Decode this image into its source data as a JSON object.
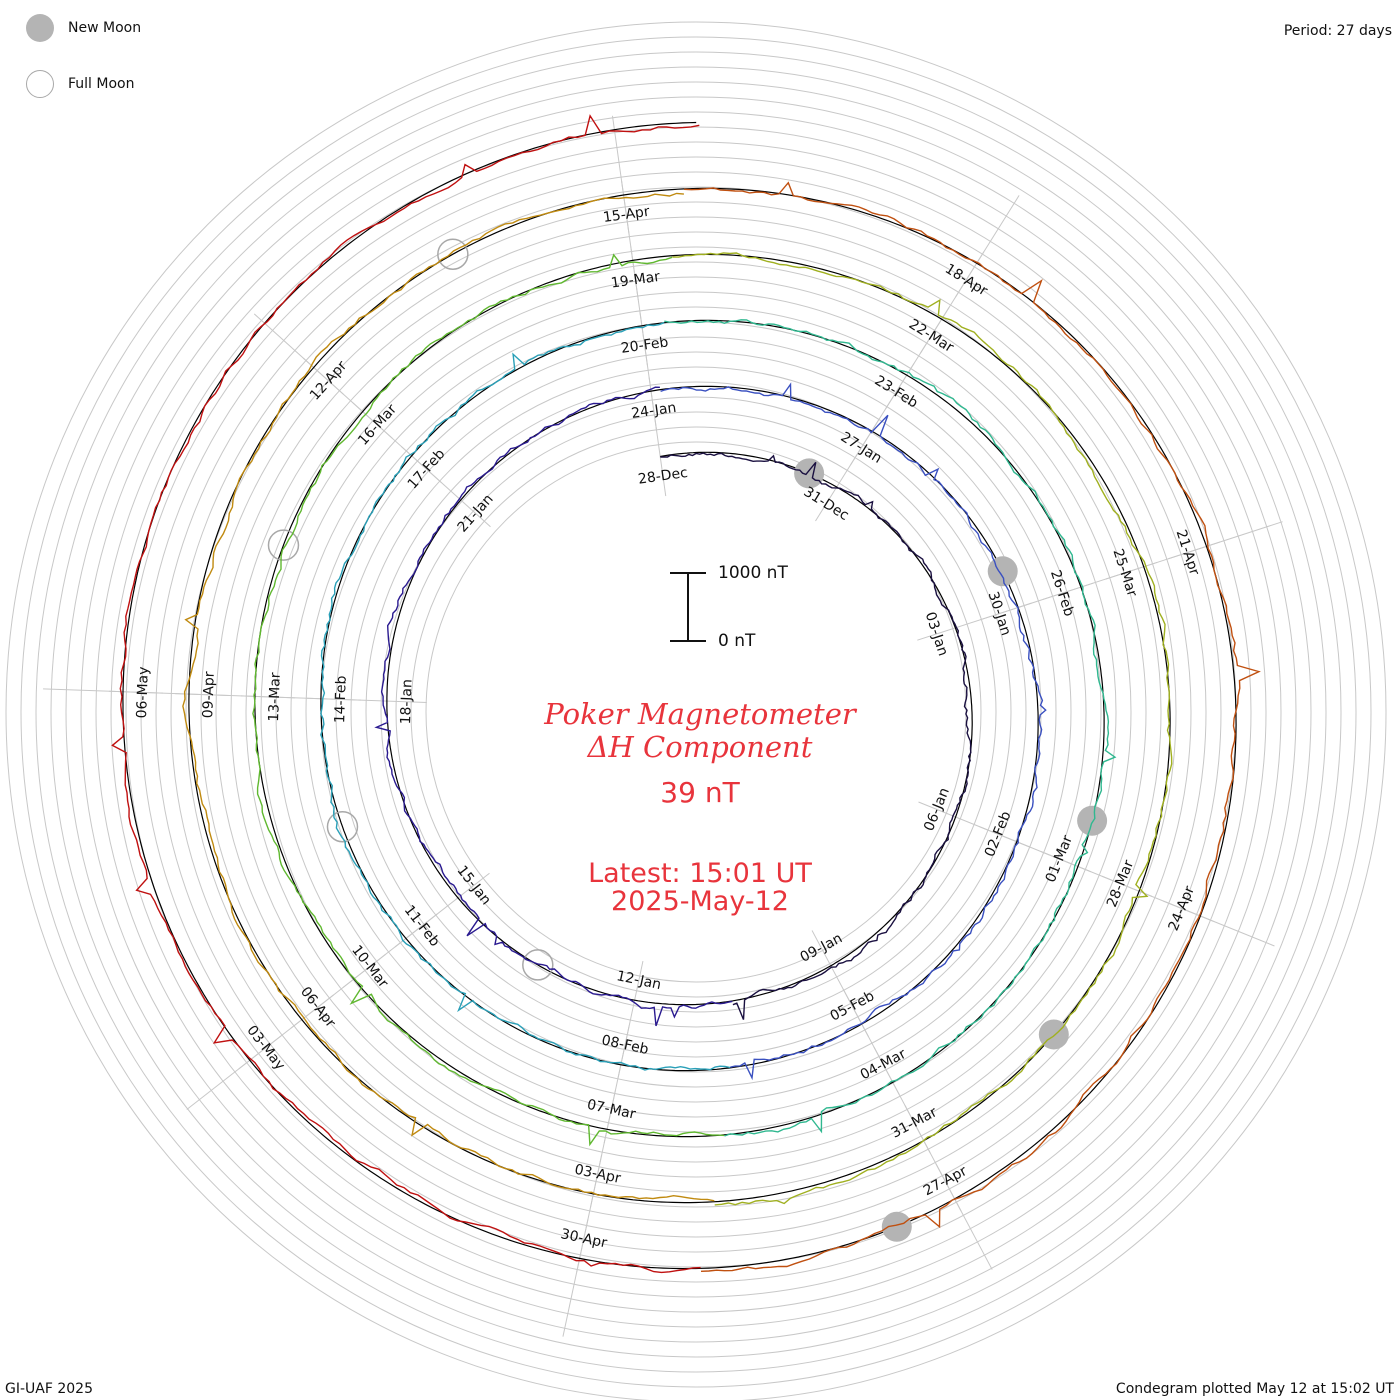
{
  "legend": {
    "new_moon": "New Moon",
    "full_moon": "Full Moon"
  },
  "period_label": "Period: 27 days",
  "footer_left": "GI-UAF 2025",
  "footer_right": "Condegram plotted May 12 at 15:02 UT",
  "title_line1": "Poker Magnetometer",
  "title_line2": "ΔH Component",
  "current_value": "39 nT",
  "latest_line1": "Latest: 15:01 UT",
  "latest_line2": "2025-May-12",
  "scale": {
    "top_label": "1000 nT",
    "bottom_label": "0 nT"
  },
  "colors": {
    "title_red": "#e8343c",
    "grid": "#c8c8c8",
    "moon_gray": "#b4b4b4"
  },
  "chart_data": {
    "type": "line",
    "period_days": 27,
    "scale_nT": [
      0,
      1000
    ],
    "start_date": "2024-12-28",
    "end_date": "2025-05-12",
    "date_labels": [
      "28-Dec",
      "31-Dec",
      "03-Jan",
      "06-Jan",
      "09-Jan",
      "12-Jan",
      "15-Jan",
      "18-Jan",
      "21-Jan",
      "24-Jan",
      "27-Jan",
      "30-Jan",
      "02-Feb",
      "05-Feb",
      "08-Feb",
      "11-Feb",
      "14-Feb",
      "17-Feb",
      "20-Feb",
      "23-Feb",
      "26-Feb",
      "01-Mar",
      "04-Mar",
      "07-Mar",
      "10-Mar",
      "13-Mar",
      "16-Mar",
      "19-Mar",
      "22-Mar",
      "25-Mar",
      "28-Mar",
      "31-Mar",
      "03-Apr",
      "06-Apr",
      "09-Apr",
      "12-Apr",
      "15-Apr",
      "18-Apr",
      "21-Apr",
      "24-Apr",
      "27-Apr",
      "30-Apr",
      "03-May",
      "06-May"
    ],
    "new_moons": [
      "2024-12-30",
      "2025-01-29",
      "2025-02-28",
      "2025-03-29",
      "2025-04-27"
    ],
    "full_moons": [
      "2025-01-13",
      "2025-02-12",
      "2025-03-14",
      "2025-04-13"
    ],
    "series_colors": [
      "#1a1040",
      "#2a1a90",
      "#3a50c0",
      "#2aa0b8",
      "#30b890",
      "#60b830",
      "#a0b020",
      "#c08a10",
      "#c05010",
      "#c01010"
    ]
  }
}
